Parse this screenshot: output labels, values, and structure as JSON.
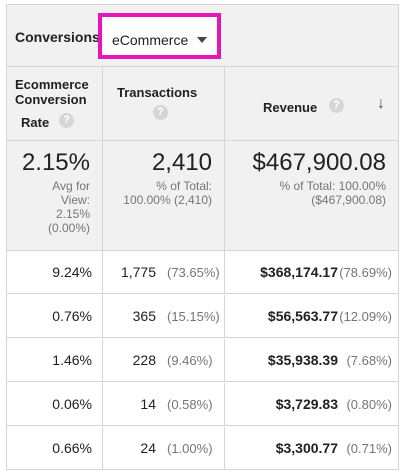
{
  "conversions": {
    "label": "Conversions",
    "selected": "eCommerce",
    "highlight_color": "#e615b9"
  },
  "columns": {
    "rate": {
      "line1": "Ecommerce",
      "line2": "Conversion",
      "line3": "Rate",
      "help": "?"
    },
    "transactions": {
      "label": "Transactions",
      "help": "?"
    },
    "revenue": {
      "label": "Revenue",
      "help": "?",
      "sort_indicator": "↓"
    }
  },
  "totals": {
    "rate": {
      "value": "2.15%",
      "line1": "Avg for",
      "line2": "View:",
      "line3": "2.15%",
      "line4": "(0.00%)"
    },
    "transactions": {
      "value": "2,410",
      "line1": "% of Total:",
      "line2": "100.00% (2,410)"
    },
    "revenue": {
      "value": "$467,900.08",
      "line1": "% of Total: 100.00%",
      "line2": "($467,900.08)"
    }
  },
  "rows": [
    {
      "rate": "9.24%",
      "transactions": "1,775",
      "transactions_pct": "(73.65%)",
      "revenue": "$368,174.17",
      "revenue_pct": "(78.69%)"
    },
    {
      "rate": "0.76%",
      "transactions": "365",
      "transactions_pct": "(15.15%)",
      "revenue": "$56,563.77",
      "revenue_pct": "(12.09%)"
    },
    {
      "rate": "1.46%",
      "transactions": "228",
      "transactions_pct": "(9.46%)",
      "revenue": "$35,938.39",
      "revenue_pct": "(7.68%)"
    },
    {
      "rate": "0.06%",
      "transactions": "14",
      "transactions_pct": "(0.58%)",
      "revenue": "$3,729.83",
      "revenue_pct": "(0.80%)"
    },
    {
      "rate": "0.66%",
      "transactions": "24",
      "transactions_pct": "(1.00%)",
      "revenue": "$3,300.77",
      "revenue_pct": "(0.71%)"
    }
  ]
}
